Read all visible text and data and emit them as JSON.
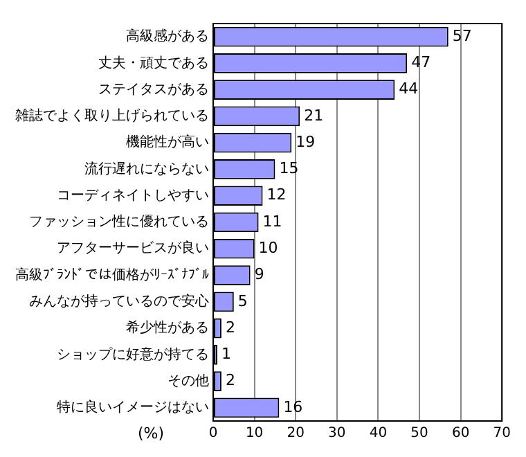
{
  "chart_data": {
    "type": "bar",
    "orientation": "horizontal",
    "xlabel": "(%)",
    "categories": [
      "高級感がある",
      "丈夫・頑丈である",
      "ステイタスがある",
      "雑誌でよく取り上げられている",
      "機能性が高い",
      "流行遅れにならない",
      "コーディネイトしやすい",
      "ファッション性に優れている",
      "アフターサービスが良い",
      "高級ﾌﾞﾗﾝﾄﾞでは価格がﾘｰｽﾞﾅﾌﾞﾙ",
      "みんなが持っているので安心",
      "希少性がある",
      "ショップに好意が持てる",
      "その他",
      "特に良いイメージはない"
    ],
    "values": [
      57,
      47,
      44,
      21,
      19,
      15,
      12,
      11,
      10,
      9,
      5,
      2,
      1,
      2,
      16
    ],
    "color": "#9999ff",
    "xlim": [
      0,
      70
    ],
    "xticks": [
      0,
      10,
      20,
      30,
      40,
      50,
      60,
      70
    ],
    "grid": "x",
    "data_labels": true
  }
}
